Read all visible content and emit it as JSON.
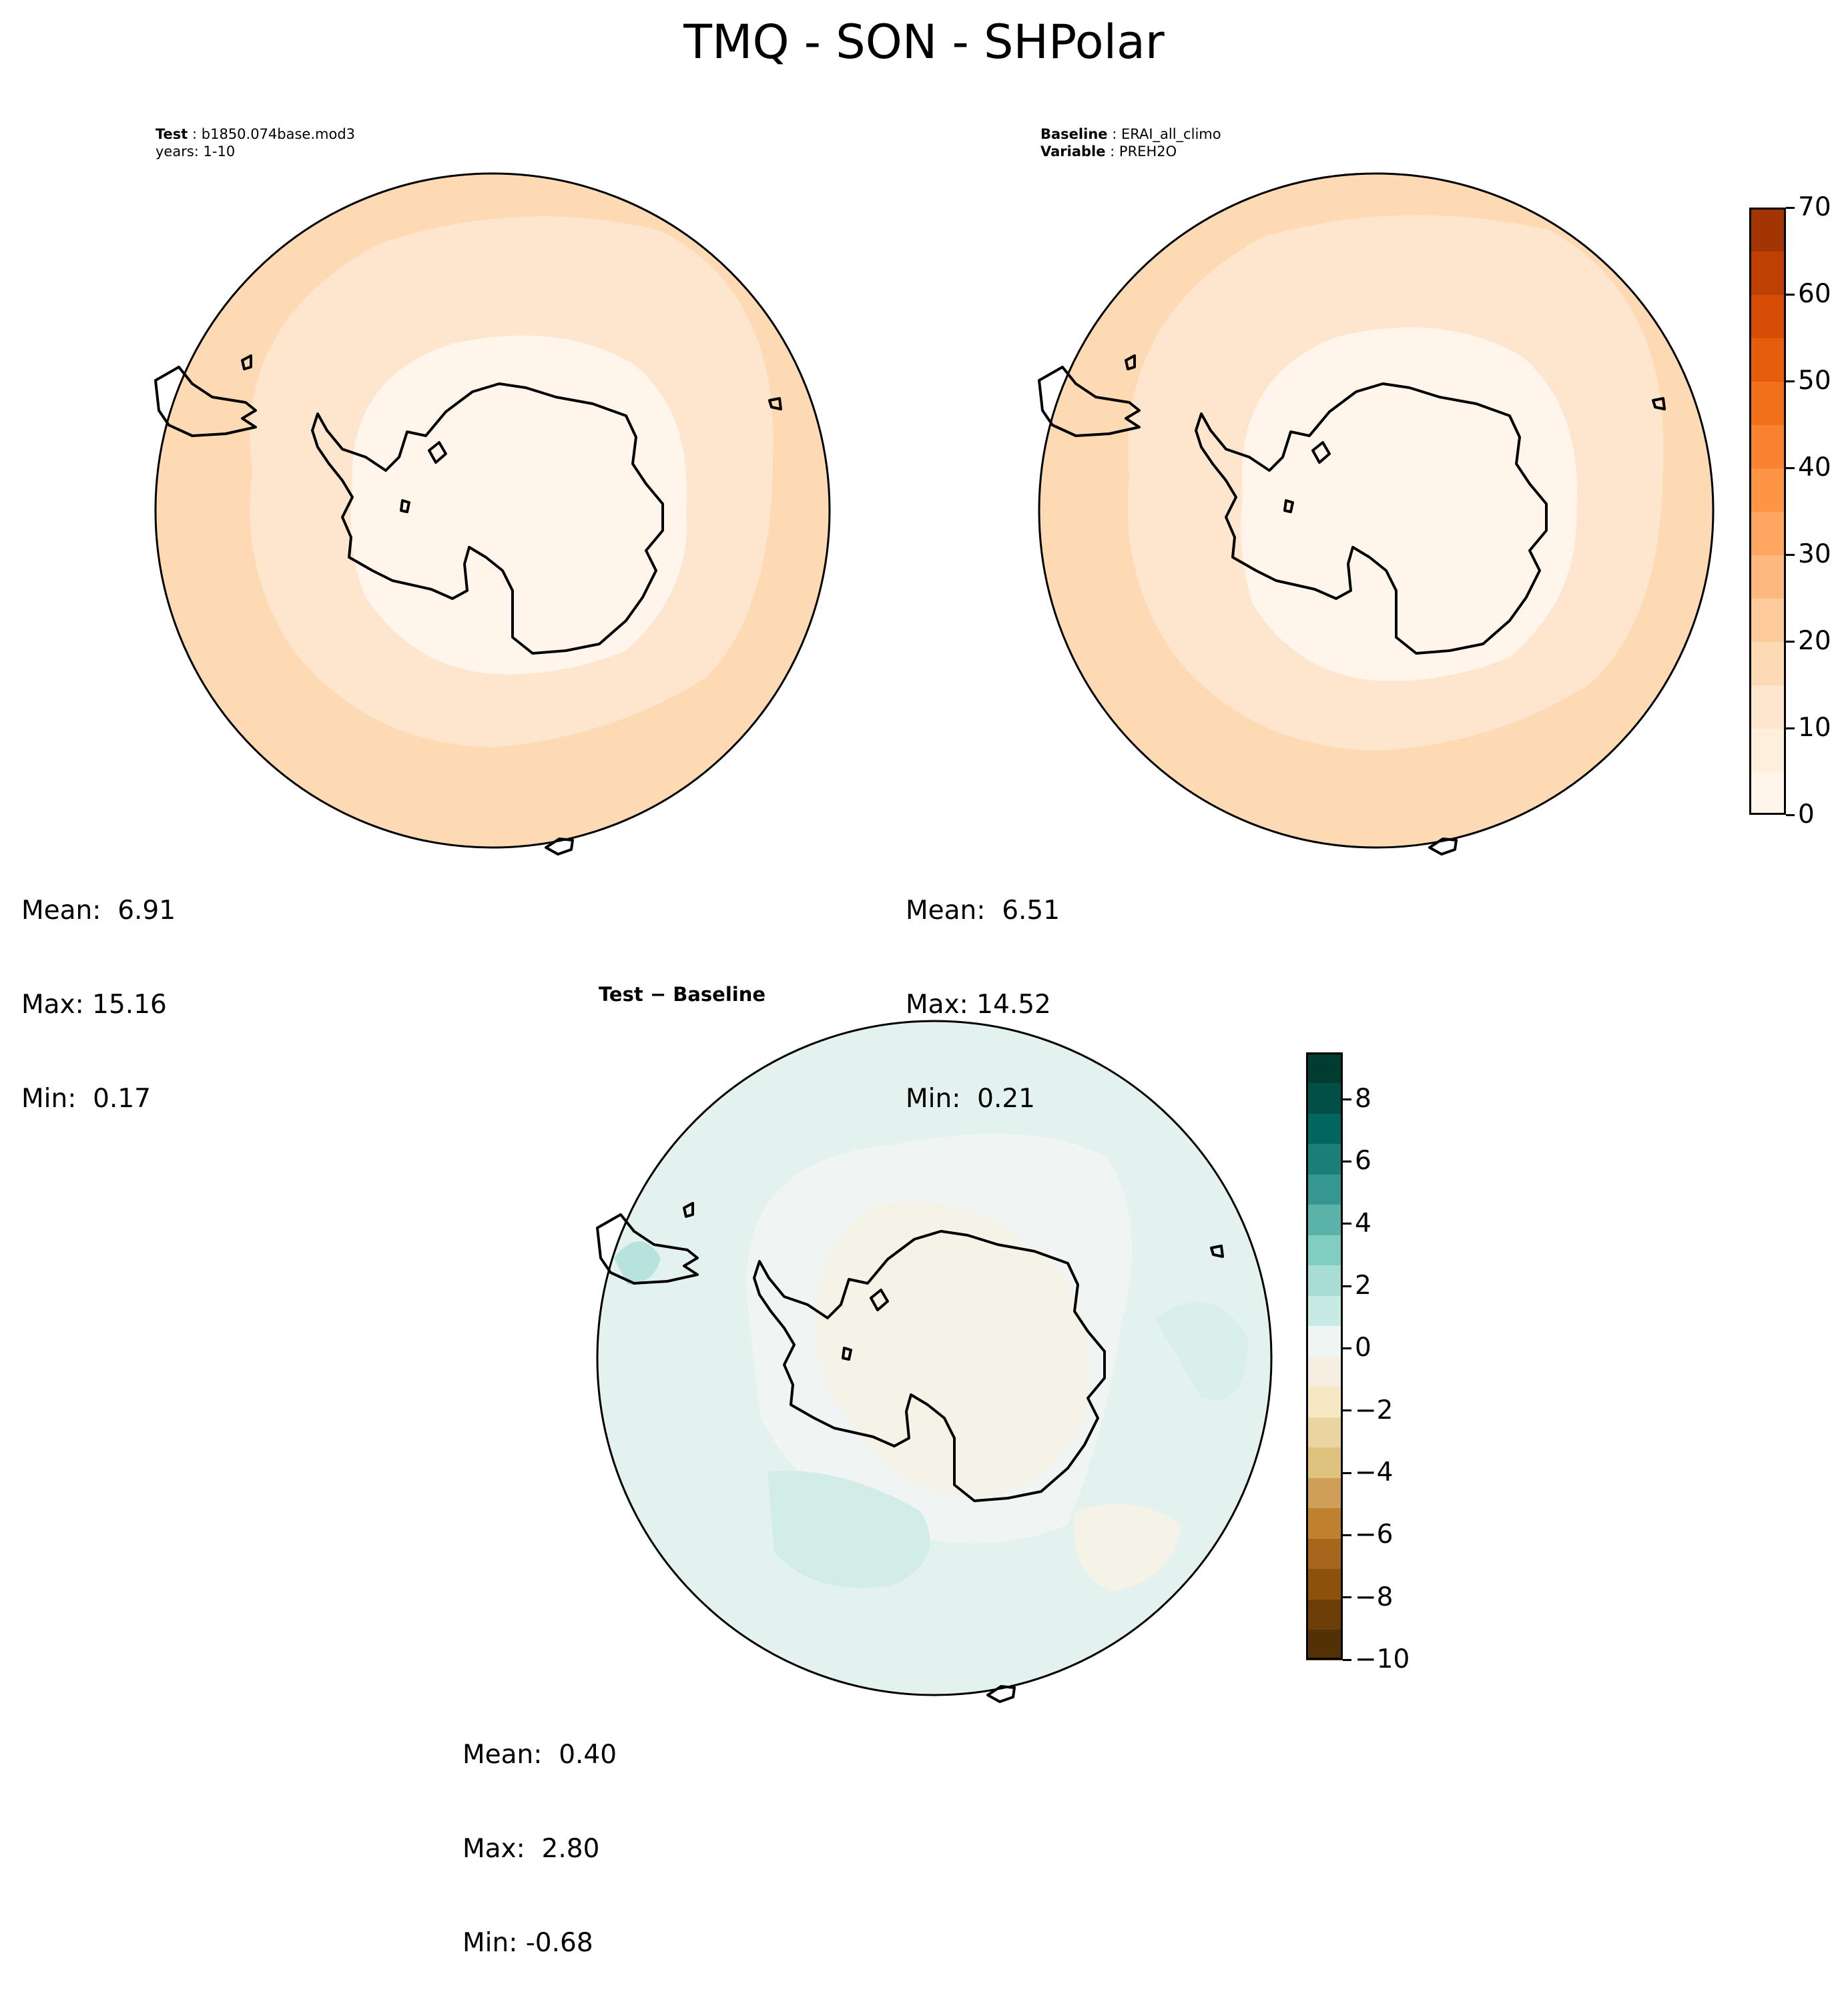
{
  "title": "TMQ - SON - SHPolar",
  "colors": {
    "seq": [
      "#fff5eb",
      "#feeedc",
      "#fee6ce",
      "#fdd9b4",
      "#fdca9a",
      "#fdb97d",
      "#fda762",
      "#fd9446",
      "#f98230",
      "#f3701b",
      "#e65e0d",
      "#d84d05",
      "#c03f02",
      "#a33403",
      "#86290d",
      "#7f2704"
    ],
    "div": [
      "#543005",
      "#6d3e07",
      "#8c510a",
      "#a6661c",
      "#bf812d",
      "#cf9f5a",
      "#dfc27d",
      "#ead4a2",
      "#f6e8c3",
      "#f5efe1",
      "#eef5f3",
      "#c7eae5",
      "#a8ddd4",
      "#80cdc1",
      "#5ab2a8",
      "#35978f",
      "#1b7e77",
      "#01665e",
      "#024f45",
      "#003c30"
    ]
  },
  "panels": [
    {
      "id": "test",
      "line1_label": "Test",
      "line1_value": "b1850.074base.mod3",
      "line2": "years: 1-10",
      "stats": {
        "mean": "Mean:  6.91",
        "max": "Max: 15.16",
        "min": "Min:  0.17"
      }
    },
    {
      "id": "baseline",
      "line1_label": "Baseline",
      "line1_value": "ERAI_all_climo",
      "line2_label": "Variable",
      "line2_value": "PREH2O",
      "stats": {
        "mean": "Mean:  6.51",
        "max": "Max: 14.52",
        "min": "Min:  0.21"
      }
    },
    {
      "id": "diff",
      "title": "Test − Baseline",
      "stats": {
        "mean": "Mean:  0.40",
        "max": "Max:  2.80",
        "min": "Min: -0.68"
      }
    }
  ],
  "colorbars": [
    {
      "id": "absolute",
      "ticks": [
        "0",
        "10",
        "20",
        "30",
        "40",
        "50",
        "60",
        "70"
      ],
      "range": [
        0,
        70
      ]
    },
    {
      "id": "difference",
      "ticks": [
        "−10",
        "−8",
        "−6",
        "−4",
        "−2",
        "0",
        "2",
        "4",
        "6",
        "8"
      ],
      "range": [
        -10,
        9.5
      ]
    }
  ]
}
